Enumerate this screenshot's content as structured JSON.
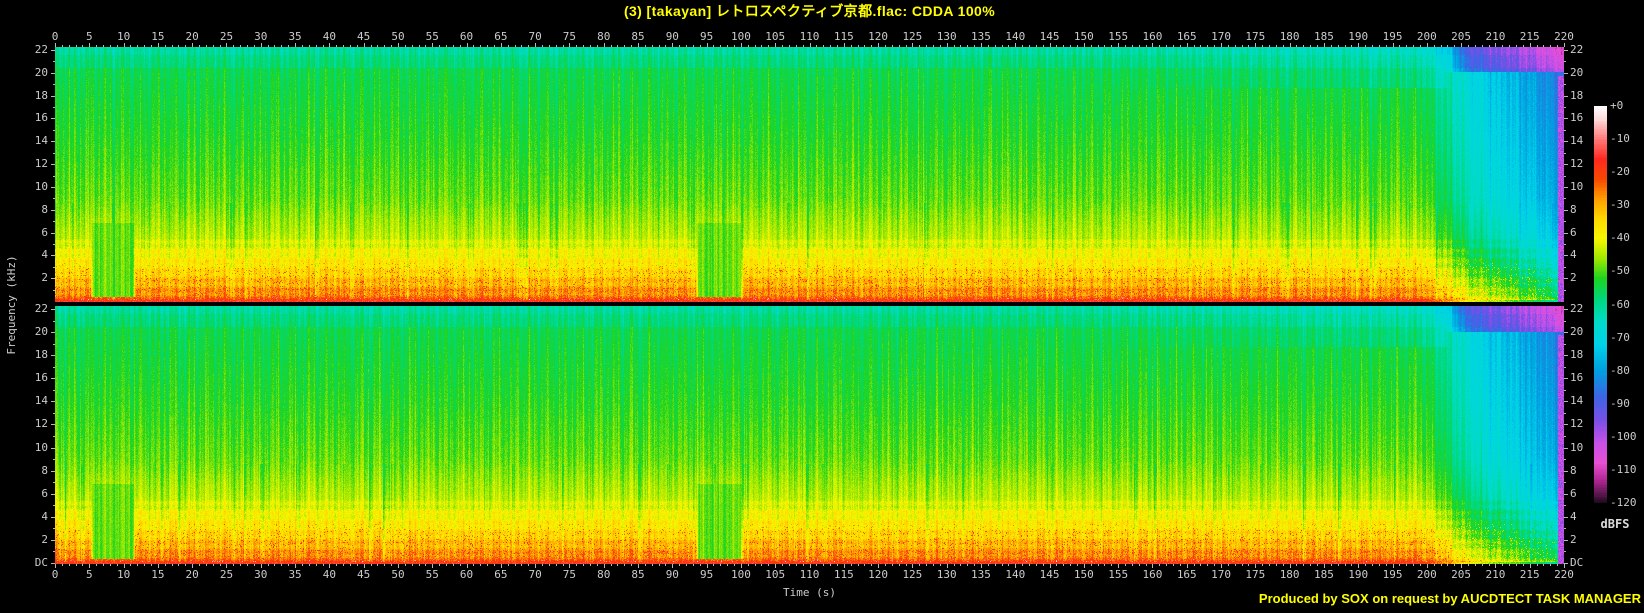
{
  "title": "(3) [takayan] レトロスペクティブ京都.flac: CDDA 100%",
  "credit": "Produced by SOX on request by AUCDTECT TASK MANAGER",
  "colors": {
    "background": "#000000",
    "accent_text": "#ffff00",
    "axis_text": "#cccccc"
  },
  "axes": {
    "x_label": "Time (s)",
    "y_label": "Frequency (kHz)",
    "x_ticks": {
      "start": 0,
      "end": 220,
      "step": 5,
      "minor_step": 1
    },
    "y_major_khz": [
      22,
      20,
      18,
      16,
      14,
      12,
      10,
      8,
      6,
      4,
      2
    ],
    "dc_label": "DC"
  },
  "legend": {
    "unit": "dBFS",
    "tick_labels": [
      "+0",
      "-10",
      "-20",
      "-30",
      "-40",
      "-50",
      "-60",
      "-70",
      "-80",
      "-90",
      "-100",
      "-110",
      "-120"
    ],
    "db_range": [
      0,
      -120
    ]
  },
  "chart_data": {
    "type": "heatmap",
    "subtype": "audio-spectrogram",
    "title": "(3) [takayan] レトロスペクティブ京都.flac: CDDA 100%",
    "channels": [
      "left",
      "right"
    ],
    "x_axis": {
      "label": "Time (s)",
      "range_s": [
        0,
        220
      ],
      "tick_step_s": 5
    },
    "y_axis": {
      "label": "Frequency (kHz)",
      "range_khz": [
        0,
        22
      ],
      "tick_step_khz": 2
    },
    "z_axis": {
      "label": "dBFS",
      "range_db": [
        0,
        -120
      ]
    },
    "palette_stops_db_hex": [
      [
        0,
        "#ffffff"
      ],
      [
        -4,
        "#ffd8d8"
      ],
      [
        -10,
        "#ff7878"
      ],
      [
        -16,
        "#ff2820"
      ],
      [
        -22,
        "#f84800"
      ],
      [
        -28,
        "#ff9c00"
      ],
      [
        -34,
        "#ffd800"
      ],
      [
        -40,
        "#f6f600"
      ],
      [
        -46,
        "#a2e800"
      ],
      [
        -52,
        "#1ed41e"
      ],
      [
        -58,
        "#00d878"
      ],
      [
        -65,
        "#00dcc8"
      ],
      [
        -72,
        "#00d2e8"
      ],
      [
        -80,
        "#00a0e0"
      ],
      [
        -88,
        "#3c64e6"
      ],
      [
        -95,
        "#7850e6"
      ],
      [
        -102,
        "#c850e8"
      ],
      [
        -108,
        "#e650d2"
      ],
      [
        -113,
        "#b42896"
      ],
      [
        -118,
        "#501446"
      ],
      [
        -120,
        "#1e0a1e"
      ]
    ],
    "base_profile": {
      "freq_khz": [
        22,
        20,
        14,
        9,
        7,
        5.5,
        4.5,
        3,
        1.8,
        0.8,
        0.3,
        0.05,
        0
      ],
      "dbfs": [
        -57,
        -55,
        -52,
        -49,
        -46,
        -44,
        -40,
        -36,
        -31,
        -27,
        -23,
        -16,
        -13
      ]
    },
    "time_offsets": {
      "t_s": [
        0,
        199,
        202,
        205,
        209,
        213,
        217,
        219.2,
        220
      ],
      "db_offset": [
        0,
        0,
        -5,
        -12,
        -18,
        -22,
        -27,
        -30,
        -32
      ]
    },
    "quiet_segments_s": [
      [
        5.5,
        11.3
      ],
      [
        93.8,
        99.9
      ]
    ],
    "fade_out_start_s": 199,
    "end_notch_s": 219.2,
    "features": [
      "two stereo channels stacked vertically with nearly identical content",
      "strong bass energy below 4 kHz (yellow/orange with red speckles)",
      "broadband green energy up to 22 kHz for most of the track",
      "quiet low-frequency breaks near 5.5-11 s and 94-100 s",
      "fade-out from ~199 s to 220 s passing green→cyan→blue→magenta",
      "bright red DC line along the bottom of each channel"
    ]
  }
}
